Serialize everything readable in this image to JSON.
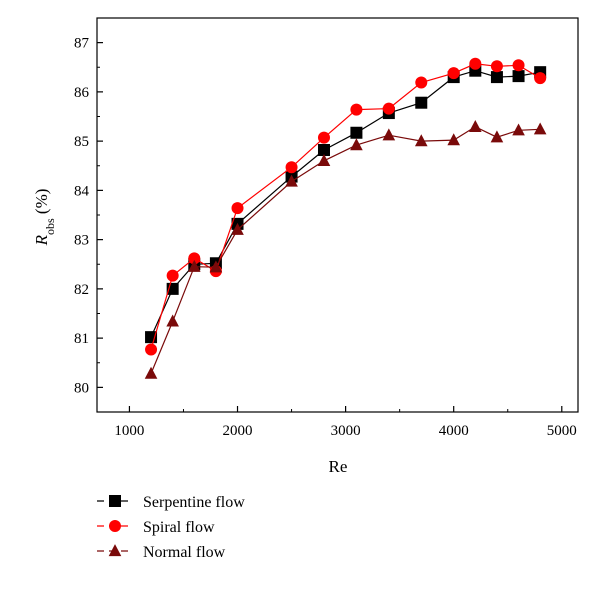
{
  "chart_data": {
    "type": "line",
    "title": "",
    "xlabel": "Re",
    "ylabel_main": "R",
    "ylabel_sub": "obs",
    "ylabel_unit": " (%)",
    "xlim": [
      700,
      5150
    ],
    "ylim": [
      79.5,
      87.5
    ],
    "x_ticks": [
      1000,
      2000,
      3000,
      4000,
      5000
    ],
    "y_ticks": [
      80,
      81,
      82,
      83,
      84,
      85,
      86,
      87
    ],
    "grid": false,
    "legend_position": "bottom-left",
    "series": [
      {
        "name": "Serpentine flow",
        "marker": "square",
        "color": "#000000",
        "line_color": "#000000",
        "points": [
          {
            "x": 1200,
            "y": 81.02
          },
          {
            "x": 1400,
            "y": 82.0
          },
          {
            "x": 1600,
            "y": 82.5
          },
          {
            "x": 1800,
            "y": 82.52
          },
          {
            "x": 2000,
            "y": 83.32
          },
          {
            "x": 2500,
            "y": 84.28
          },
          {
            "x": 2800,
            "y": 84.82
          },
          {
            "x": 3100,
            "y": 85.17
          },
          {
            "x": 3400,
            "y": 85.57
          },
          {
            "x": 3700,
            "y": 85.78
          },
          {
            "x": 4000,
            "y": 86.3
          },
          {
            "x": 4200,
            "y": 86.43
          },
          {
            "x": 4400,
            "y": 86.3
          },
          {
            "x": 4600,
            "y": 86.32
          },
          {
            "x": 4800,
            "y": 86.4
          }
        ]
      },
      {
        "name": "Spiral flow",
        "marker": "circle",
        "color": "#ff0000",
        "line_color": "#ff0000",
        "points": [
          {
            "x": 1200,
            "y": 80.77
          },
          {
            "x": 1400,
            "y": 82.27
          },
          {
            "x": 1600,
            "y": 82.62
          },
          {
            "x": 1800,
            "y": 82.36
          },
          {
            "x": 2000,
            "y": 83.64
          },
          {
            "x": 2500,
            "y": 84.47
          },
          {
            "x": 2800,
            "y": 85.07
          },
          {
            "x": 3100,
            "y": 85.64
          },
          {
            "x": 3400,
            "y": 85.66
          },
          {
            "x": 3700,
            "y": 86.19
          },
          {
            "x": 4000,
            "y": 86.38
          },
          {
            "x": 4200,
            "y": 86.57
          },
          {
            "x": 4400,
            "y": 86.52
          },
          {
            "x": 4600,
            "y": 86.54
          },
          {
            "x": 4800,
            "y": 86.28
          }
        ]
      },
      {
        "name": "Normal flow",
        "marker": "triangle",
        "color": "#7a0a0a",
        "line_color": "#7a0a0a",
        "points": [
          {
            "x": 1200,
            "y": 80.28
          },
          {
            "x": 1400,
            "y": 81.34
          },
          {
            "x": 1600,
            "y": 82.45
          },
          {
            "x": 1800,
            "y": 82.44
          },
          {
            "x": 2000,
            "y": 83.2
          },
          {
            "x": 2500,
            "y": 84.18
          },
          {
            "x": 2800,
            "y": 84.6
          },
          {
            "x": 3100,
            "y": 84.92
          },
          {
            "x": 3400,
            "y": 85.12
          },
          {
            "x": 3700,
            "y": 85.0
          },
          {
            "x": 4000,
            "y": 85.02
          },
          {
            "x": 4200,
            "y": 85.29
          },
          {
            "x": 4400,
            "y": 85.08
          },
          {
            "x": 4600,
            "y": 85.22
          },
          {
            "x": 4800,
            "y": 85.24
          }
        ]
      }
    ]
  }
}
